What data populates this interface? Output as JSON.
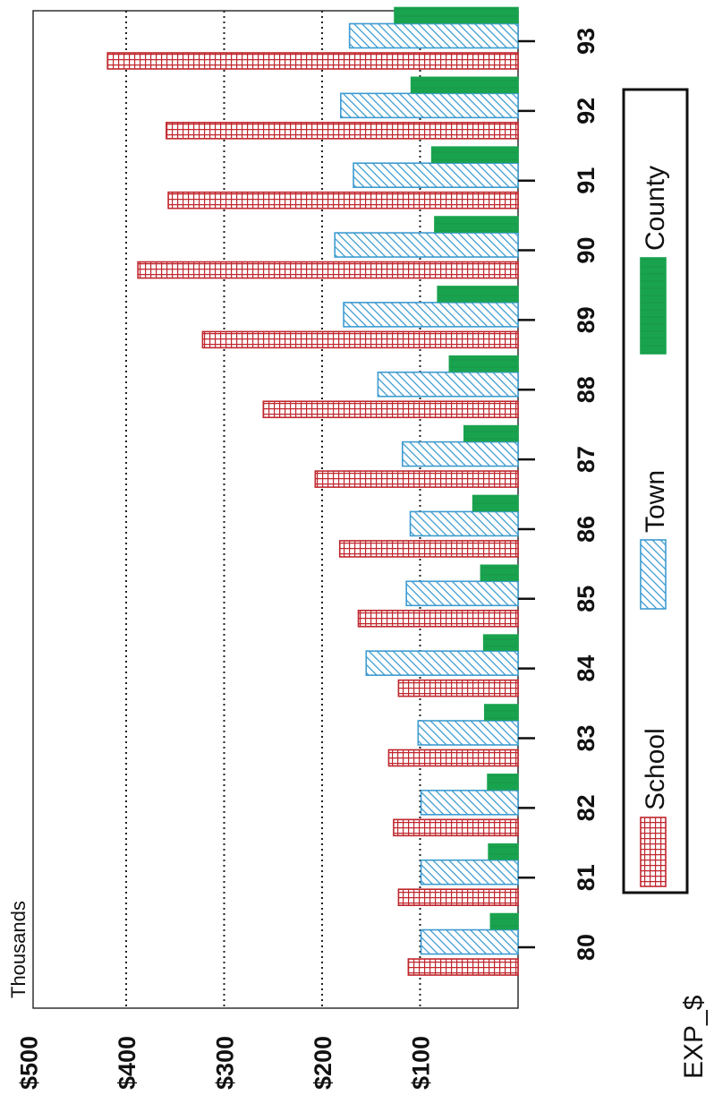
{
  "chart_data": {
    "type": "bar",
    "orientation": "rotated",
    "ylabel": "EXP_$",
    "unit_label": "Thousands",
    "categories": [
      "80",
      "81",
      "82",
      "83",
      "84",
      "85",
      "86",
      "87",
      "88",
      "89",
      "90",
      "91",
      "92",
      "93"
    ],
    "series": [
      {
        "name": "School",
        "color": "#c0262d",
        "pattern": "grid",
        "values": [
          112,
          122,
          127,
          132,
          122,
          163,
          182,
          207,
          260,
          322,
          388,
          357,
          359,
          419
        ]
      },
      {
        "name": "Town",
        "color": "#3d9bd0",
        "pattern": "hatch",
        "values": [
          99,
          99,
          99,
          102,
          155,
          114,
          110,
          118,
          143,
          178,
          187,
          168,
          181,
          172
        ]
      },
      {
        "name": "County",
        "color": "#1aa34f",
        "pattern": "solid",
        "values": [
          28,
          30,
          31,
          34,
          35,
          38,
          46,
          55,
          70,
          82,
          85,
          88,
          109,
          126
        ]
      }
    ],
    "tick_labels": [
      "$100",
      "$200",
      "$300",
      "$400",
      "$500"
    ],
    "ylim": [
      0,
      500
    ],
    "grid": true,
    "grid_style": "dotted",
    "legend_position": "bottom"
  }
}
